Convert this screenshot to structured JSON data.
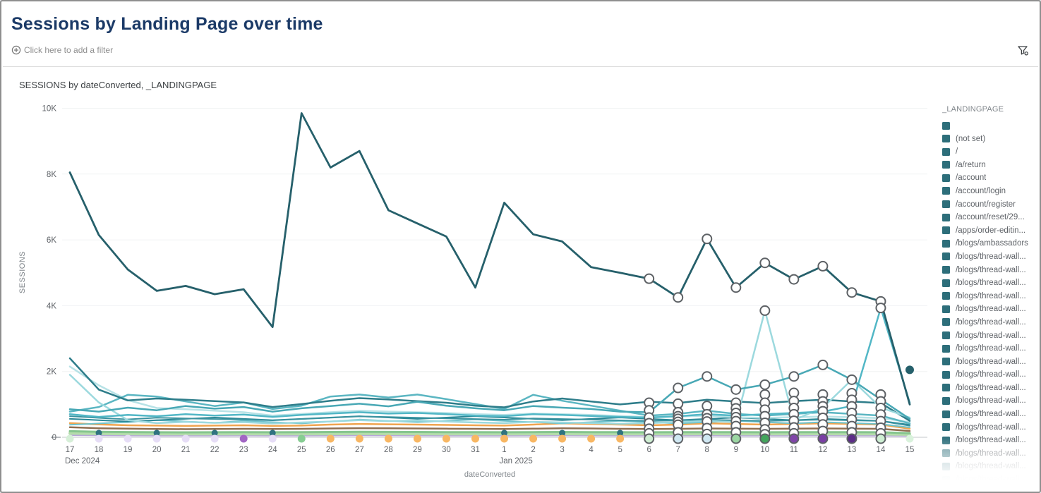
{
  "header": {
    "title": "Sessions by Landing Page over time"
  },
  "filter_bar": {
    "add_label": "Click here to add a filter",
    "add_icon": "circle-plus-icon",
    "filter_icon": "funnel-settings-icon"
  },
  "chart": {
    "title": "SESSIONS by dateConverted, _LANDINGPAGE"
  },
  "legend": {
    "header": "_LANDINGPAGE",
    "swatch_color": "#2d6e7a",
    "items": [
      {
        "label": ""
      },
      {
        "label": "(not set)"
      },
      {
        "label": "/"
      },
      {
        "label": "/a/return"
      },
      {
        "label": "/account"
      },
      {
        "label": "/account/login"
      },
      {
        "label": "/account/register"
      },
      {
        "label": "/account/reset/29..."
      },
      {
        "label": "/apps/order-editin..."
      },
      {
        "label": "/blogs/ambassadors"
      },
      {
        "label": "/blogs/thread-wall..."
      },
      {
        "label": "/blogs/thread-wall..."
      },
      {
        "label": "/blogs/thread-wall..."
      },
      {
        "label": "/blogs/thread-wall..."
      },
      {
        "label": "/blogs/thread-wall..."
      },
      {
        "label": "/blogs/thread-wall..."
      },
      {
        "label": "/blogs/thread-wall..."
      },
      {
        "label": "/blogs/thread-wall..."
      },
      {
        "label": "/blogs/thread-wall..."
      },
      {
        "label": "/blogs/thread-wall..."
      },
      {
        "label": "/blogs/thread-wall..."
      },
      {
        "label": "/blogs/thread-wall..."
      },
      {
        "label": "/blogs/thread-wall..."
      },
      {
        "label": "/blogs/thread-wall..."
      },
      {
        "label": "/blogs/thread-wall..."
      },
      {
        "label": "/blogs/thread-wall...",
        "fade": 0.7
      },
      {
        "label": "/blogs/thread-wall...",
        "fade": 0.38
      },
      {
        "label": "/blogs/thread-wall...",
        "fade": 0.15
      }
    ]
  },
  "chart_data": {
    "type": "line",
    "title": "SESSIONS by dateConverted, _LANDINGPAGE",
    "xlabel": "dateConverted",
    "ylabel": "SESSIONS",
    "ylim": [
      0,
      10000
    ],
    "grid": true,
    "legend_position": "right",
    "yticks": [
      {
        "label": "0",
        "value": 0
      },
      {
        "label": "2K",
        "value": 2000
      },
      {
        "label": "4K",
        "value": 4000
      },
      {
        "label": "6K",
        "value": 6000
      },
      {
        "label": "8K",
        "value": 8000
      },
      {
        "label": "10K",
        "value": 10000
      }
    ],
    "x_labels": [
      "17",
      "18",
      "19",
      "20",
      "21",
      "22",
      "23",
      "24",
      "25",
      "26",
      "27",
      "28",
      "29",
      "30",
      "31",
      "1",
      "2",
      "3",
      "4",
      "5",
      "6",
      "7",
      "8",
      "9",
      "10",
      "11",
      "12",
      "13",
      "14",
      "15"
    ],
    "month_markers": [
      {
        "index": 0,
        "label": "Dec 2024"
      },
      {
        "index": 15,
        "label": "Jan 2025"
      }
    ],
    "series": [
      {
        "name": "purple-low",
        "color": "#b7a6d9",
        "width": 2,
        "values": [
          62,
          56,
          52,
          50,
          50,
          50,
          52,
          50,
          50,
          52,
          56,
          54,
          52,
          50,
          50,
          50,
          52,
          54,
          52,
          50,
          50,
          50,
          52,
          50,
          50,
          50,
          52,
          50,
          50,
          42
        ]
      },
      {
        "name": "green-band",
        "color": "#b4dcab",
        "width": 4,
        "values": [
          120,
          110,
          105,
          100,
          100,
          100,
          102,
          100,
          102,
          106,
          110,
          108,
          106,
          103,
          100,
          100,
          103,
          106,
          103,
          100,
          100,
          102,
          104,
          102,
          100,
          102,
          104,
          102,
          100,
          85
        ]
      },
      {
        "name": "green",
        "color": "#85c58e",
        "width": 3,
        "values": [
          185,
          165,
          158,
          152,
          150,
          152,
          154,
          152,
          154,
          160,
          164,
          162,
          160,
          157,
          154,
          152,
          157,
          160,
          157,
          154,
          152,
          154,
          157,
          154,
          152,
          154,
          157,
          154,
          152,
          125
        ]
      },
      {
        "name": "brown",
        "color": "#8f6e50",
        "width": 2.5,
        "values": [
          305,
          275,
          262,
          252,
          247,
          252,
          257,
          252,
          257,
          267,
          277,
          272,
          267,
          262,
          257,
          252,
          262,
          272,
          267,
          257,
          252,
          257,
          267,
          262,
          257,
          262,
          267,
          262,
          257,
          190
        ]
      },
      {
        "name": "orange",
        "color": "#f0a44f",
        "width": 2.5,
        "values": [
          430,
          390,
          365,
          355,
          345,
          355,
          365,
          345,
          355,
          385,
          405,
          395,
          385,
          375,
          365,
          355,
          385,
          425,
          405,
          385,
          365,
          385,
          425,
          405,
          385,
          405,
          425,
          405,
          385,
          260
        ]
      },
      {
        "name": "teal-extra-1",
        "color": "#6fc2cb",
        "width": 2,
        "values": [
          380,
          420,
          460,
          520,
          480,
          440,
          500,
          460,
          420,
          480,
          540,
          500,
          460,
          500,
          540,
          500,
          460,
          420,
          460,
          500,
          460,
          420,
          460,
          500,
          460,
          420,
          460,
          430,
          400,
          300
        ]
      },
      {
        "name": "teal-extra-2",
        "color": "#2a8796",
        "width": 2,
        "values": [
          560,
          520,
          480,
          520,
          560,
          600,
          560,
          520,
          560,
          600,
          640,
          600,
          560,
          600,
          640,
          600,
          560,
          520,
          560,
          600,
          560,
          520,
          560,
          600,
          560,
          520,
          560,
          530,
          500,
          380
        ]
      },
      {
        "name": "teal-small",
        "color": "#3b93a0",
        "width": 2,
        "values": [
          640,
          590,
          545,
          595,
          575,
          555,
          535,
          515,
          555,
          595,
          635,
          615,
          595,
          575,
          555,
          535,
          575,
          555,
          535,
          515,
          495,
          515,
          535,
          515,
          495,
          515,
          535,
          515,
          495,
          350
        ]
      },
      {
        "name": "teal-pale",
        "color": "#b7e2e6",
        "width": 2.5,
        "values": [
          2150,
          1580,
          1130,
          890,
          850,
          810,
          760,
          660,
          710,
          760,
          810,
          780,
          760,
          740,
          700,
          680,
          720,
          700,
          680,
          650,
          610,
          630,
          660,
          610,
          590,
          610,
          630,
          610,
          580,
          460
        ]
      },
      {
        "name": "teal-mid",
        "color": "#5bb6c2",
        "width": 2.5,
        "values": [
          780,
          920,
          1290,
          1240,
          1090,
          950,
          1060,
          860,
          960,
          1240,
          1300,
          1210,
          1300,
          1160,
          1010,
          860,
          1290,
          1110,
          960,
          810,
          660,
          710,
          810,
          710,
          660,
          710,
          760,
          710,
          660,
          420
        ]
      },
      {
        "name": "teal-dark-2",
        "color": "#2e7d8a",
        "width": 2.5,
        "values": [
          2400,
          1450,
          1120,
          1180,
          1140,
          1100,
          1060,
          920,
          1010,
          1110,
          1190,
          1150,
          1100,
          1050,
          960,
          910,
          1090,
          1180,
          1090,
          1000,
          1080,
          1040,
          1140,
          1090,
          1040,
          1100,
          1140,
          1090,
          1040,
          500
        ]
      },
      {
        "name": "cyan-light-spike",
        "color": "#9cd9de",
        "width": 2.5,
        "values": [
          1900,
          1060,
          520,
          430,
          470,
          440,
          460,
          420,
          450,
          480,
          520,
          490,
          510,
          480,
          450,
          430,
          470,
          450,
          430,
          410,
          430,
          460,
          500,
          460,
          3850,
          520,
          900,
          1750,
          900,
          600
        ]
      },
      {
        "name": "cyan-spike-14",
        "color": "#52b7c6",
        "width": 2.5,
        "values": [
          700,
          620,
          680,
          640,
          700,
          660,
          690,
          620,
          680,
          720,
          760,
          720,
          740,
          700,
          660,
          640,
          700,
          680,
          650,
          620,
          600,
          640,
          700,
          660,
          700,
          740,
          780,
          950,
          3930,
          1050
        ]
      },
      {
        "name": "cyan-mid-rings",
        "color": "#48a8b5",
        "width": 2.5,
        "values": [
          850,
          780,
          900,
          820,
          950,
          870,
          920,
          780,
          880,
          950,
          1020,
          940,
          1080,
          960,
          880,
          820,
          950,
          900,
          860,
          780,
          760,
          1500,
          1850,
          1450,
          1600,
          1850,
          2200,
          1750,
          1150,
          560
        ]
      },
      {
        "name": "main-dark-teal",
        "color": "#26606b",
        "width": 2.8,
        "values": [
          8050,
          6150,
          5100,
          4450,
          4600,
          4350,
          4500,
          3350,
          9850,
          8200,
          8700,
          6900,
          6500,
          6100,
          4550,
          7130,
          6170,
          5950,
          5170,
          5000,
          4820,
          4250,
          6030,
          4550,
          5300,
          4800,
          5200,
          4400,
          4130,
          1000
        ]
      }
    ],
    "ring_marker_stacks": [
      {
        "index": 20,
        "values": [
          4820,
          1050,
          820,
          600,
          430,
          260,
          120
        ]
      },
      {
        "index": 21,
        "values": [
          4250,
          1500,
          1020,
          760,
          640,
          560,
          470,
          380,
          150
        ]
      },
      {
        "index": 22,
        "values": [
          6030,
          1850,
          950,
          700,
          580,
          480,
          280,
          100
        ]
      },
      {
        "index": 23,
        "values": [
          4550,
          1450,
          1050,
          880,
          740,
          610,
          490,
          340,
          150
        ]
      },
      {
        "index": 24,
        "values": [
          5300,
          3850,
          1600,
          1300,
          1050,
          840,
          640,
          440,
          240,
          90
        ]
      },
      {
        "index": 25,
        "values": [
          4800,
          1850,
          1350,
          1100,
          890,
          700,
          500,
          300,
          120
        ]
      },
      {
        "index": 26,
        "values": [
          5200,
          2200,
          1300,
          1090,
          940,
          790,
          590,
          390,
          190
        ]
      },
      {
        "index": 27,
        "values": [
          4400,
          1750,
          1340,
          1140,
          940,
          740,
          540,
          340,
          150
        ]
      },
      {
        "index": 28,
        "values": [
          4130,
          3930,
          1300,
          1090,
          890,
          690,
          490,
          290,
          120
        ]
      }
    ],
    "baseline_dots": [
      {
        "c": "#d6efd8",
        "ring": false
      },
      {
        "c": "#e6ddf6",
        "ring": false
      },
      {
        "c": "#e6ddf6",
        "ring": false
      },
      {
        "c": "#e6ddf6",
        "ring": false
      },
      {
        "c": "#e6ddf6",
        "ring": false
      },
      {
        "c": "#e6ddf6",
        "ring": false
      },
      {
        "c": "#a266c4",
        "ring": false
      },
      {
        "c": "#e6ddf6",
        "ring": false
      },
      {
        "c": "#86cd92",
        "ring": false
      },
      {
        "c": "#f8b763",
        "ring": false
      },
      {
        "c": "#f8b763",
        "ring": false
      },
      {
        "c": "#f8b763",
        "ring": false
      },
      {
        "c": "#f8b763",
        "ring": false
      },
      {
        "c": "#f8b763",
        "ring": false
      },
      {
        "c": "#f8b763",
        "ring": false
      },
      {
        "c": "#f8b763",
        "ring": false
      },
      {
        "c": "#f8b763",
        "ring": false
      },
      {
        "c": "#f8b763",
        "ring": false
      },
      {
        "c": "#f8b763",
        "ring": false
      },
      {
        "c": "#f8b763",
        "ring": false
      },
      {
        "c": "#cfeed2",
        "ring": true
      },
      {
        "c": "#cfe7f2",
        "ring": true
      },
      {
        "c": "#cfe7f2",
        "ring": true
      },
      {
        "c": "#9bd6a3",
        "ring": true
      },
      {
        "c": "#43a55c",
        "ring": true
      },
      {
        "c": "#8046a8",
        "ring": true
      },
      {
        "c": "#7a3fa4",
        "ring": true
      },
      {
        "c": "#5c2d87",
        "ring": true
      },
      {
        "c": "#cdeed2",
        "ring": true
      },
      {
        "c": "#d9f2dc",
        "ring": false
      }
    ],
    "mini_dots": {
      "indices": [
        1,
        3,
        5,
        7,
        15,
        17,
        19
      ],
      "value": 130,
      "color": "#2f7280"
    },
    "standalone_dot": {
      "index": 29,
      "value": 2050,
      "color": "#26606b"
    }
  }
}
